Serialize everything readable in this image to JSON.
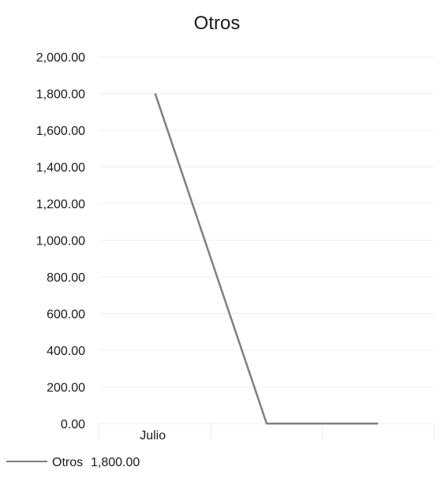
{
  "chart_data": {
    "type": "line",
    "title": "Otros",
    "categories": [
      "Julio",
      "",
      ""
    ],
    "series": [
      {
        "name": "Otros",
        "values": [
          1800,
          0,
          0
        ],
        "color": "#7f7f7f"
      }
    ],
    "ylim": [
      0,
      2000
    ],
    "yticks": [
      "0.00",
      "200.00",
      "400.00",
      "600.00",
      "800.00",
      "1,000.00",
      "1,200.00",
      "1,400.00",
      "1,600.00",
      "1,800.00",
      "2,000.00"
    ],
    "xlabel": "",
    "ylabel": "",
    "grid": true,
    "legend": "bottom",
    "data_table": {
      "series_name": "Otros",
      "values": [
        "1,800.00"
      ]
    }
  }
}
